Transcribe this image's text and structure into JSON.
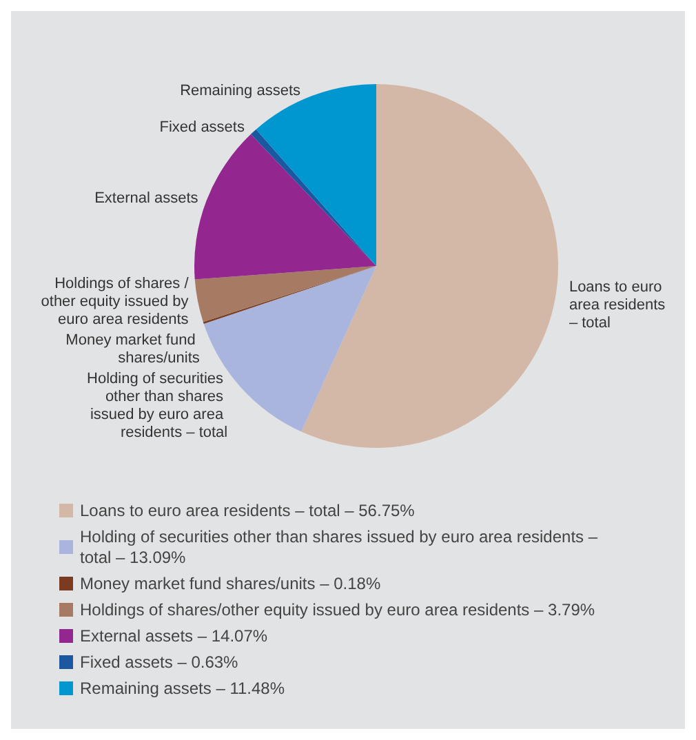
{
  "chart_data": {
    "type": "pie",
    "categories": [
      "Loans to euro area residents – total – 56.75%",
      "Holding of securities other than shares issued by euro area residents – total – 13.09%",
      "Money market fund shares/units – 0.18%",
      "Holdings of shares/other equity issued by euro area residents – 3.79%",
      "External assets – 14.07%",
      "Fixed assets – 0.63%",
      "Remaining assets – 11.48%"
    ],
    "values": [
      56.75,
      13.09,
      0.18,
      3.79,
      14.07,
      0.63,
      11.48
    ],
    "annotations": [
      "Loans to euro area residents – total",
      "Holding of securities other than shares issued by euro area residents – total",
      "Money market fund shares/units",
      "Holdings of shares /other equity issued by euro area residents",
      "External assets",
      "Fixed assets",
      "Remaining assets"
    ],
    "colors": [
      "#d3b8a8",
      "#a9b5dc",
      "#7a3b20",
      "#a77b63",
      "#93278f",
      "#1b58a0",
      "#0096cf"
    ],
    "legend": "bottom left"
  }
}
